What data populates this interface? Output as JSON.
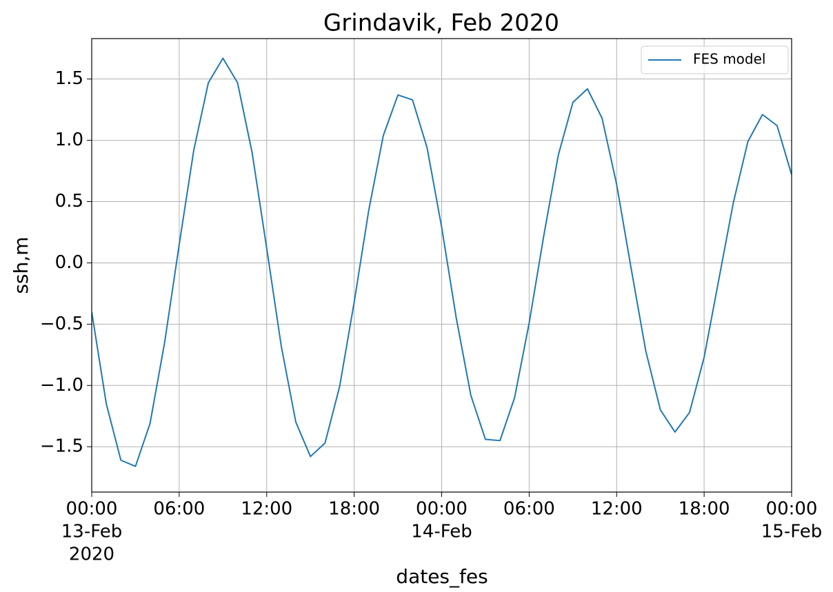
{
  "chart_data": {
    "type": "line",
    "title": "Grindavik, Feb 2020",
    "xlabel": "dates_fes",
    "ylabel": "ssh,m",
    "x": [
      "2020-02-13T00:00",
      "2020-02-13T01:00",
      "2020-02-13T02:00",
      "2020-02-13T03:00",
      "2020-02-13T04:00",
      "2020-02-13T05:00",
      "2020-02-13T06:00",
      "2020-02-13T07:00",
      "2020-02-13T08:00",
      "2020-02-13T09:00",
      "2020-02-13T10:00",
      "2020-02-13T11:00",
      "2020-02-13T12:00",
      "2020-02-13T13:00",
      "2020-02-13T14:00",
      "2020-02-13T15:00",
      "2020-02-13T16:00",
      "2020-02-13T17:00",
      "2020-02-13T18:00",
      "2020-02-13T19:00",
      "2020-02-13T20:00",
      "2020-02-13T21:00",
      "2020-02-13T22:00",
      "2020-02-13T23:00",
      "2020-02-14T00:00",
      "2020-02-14T01:00",
      "2020-02-14T02:00",
      "2020-02-14T03:00",
      "2020-02-14T04:00",
      "2020-02-14T05:00",
      "2020-02-14T06:00",
      "2020-02-14T07:00",
      "2020-02-14T08:00",
      "2020-02-14T09:00",
      "2020-02-14T10:00",
      "2020-02-14T11:00",
      "2020-02-14T12:00",
      "2020-02-14T13:00",
      "2020-02-14T14:00",
      "2020-02-14T15:00",
      "2020-02-14T16:00",
      "2020-02-14T17:00",
      "2020-02-14T18:00",
      "2020-02-14T19:00",
      "2020-02-14T20:00",
      "2020-02-14T21:00",
      "2020-02-14T22:00",
      "2020-02-14T23:00",
      "2020-02-15T00:00"
    ],
    "series": [
      {
        "name": "FES model",
        "color": "#1f77b4",
        "values": [
          -0.4,
          -1.15,
          -1.61,
          -1.66,
          -1.31,
          -0.65,
          0.15,
          0.92,
          1.47,
          1.67,
          1.47,
          0.9,
          0.12,
          -0.68,
          -1.3,
          -1.58,
          -1.47,
          -1.01,
          -0.32,
          0.43,
          1.04,
          1.37,
          1.33,
          0.94,
          0.29,
          -0.45,
          -1.08,
          -1.44,
          -1.45,
          -1.1,
          -0.49,
          0.22,
          0.88,
          1.31,
          1.42,
          1.18,
          0.64,
          -0.05,
          -0.72,
          -1.2,
          -1.38,
          -1.22,
          -0.77,
          -0.14,
          0.49,
          0.99,
          1.21,
          1.12,
          0.72
        ]
      }
    ],
    "xlim": [
      "2020-02-13T00:00",
      "2020-02-15T00:00"
    ],
    "xticks": [
      {
        "value": "2020-02-13T00:00",
        "label": [
          "00:00",
          "13-Feb",
          "2020"
        ]
      },
      {
        "value": "2020-02-13T06:00",
        "label": [
          "06:00"
        ]
      },
      {
        "value": "2020-02-13T12:00",
        "label": [
          "12:00"
        ]
      },
      {
        "value": "2020-02-13T18:00",
        "label": [
          "18:00"
        ]
      },
      {
        "value": "2020-02-14T00:00",
        "label": [
          "00:00",
          "14-Feb"
        ]
      },
      {
        "value": "2020-02-14T06:00",
        "label": [
          "06:00"
        ]
      },
      {
        "value": "2020-02-14T12:00",
        "label": [
          "12:00"
        ]
      },
      {
        "value": "2020-02-14T18:00",
        "label": [
          "18:00"
        ]
      },
      {
        "value": "2020-02-15T00:00",
        "label": [
          "00:00",
          "15-Feb"
        ]
      }
    ],
    "ylim": [
      -1.87,
      1.83
    ],
    "yticks": [
      {
        "value": -1.5,
        "label": "−1.5"
      },
      {
        "value": -1,
        "label": "−1.0"
      },
      {
        "value": -0.5,
        "label": "−0.5"
      },
      {
        "value": 0,
        "label": "0.0"
      },
      0.5,
      {
        "value": 1,
        "label": "1.0"
      },
      1.5
    ],
    "grid": true,
    "legend": "upper right"
  }
}
